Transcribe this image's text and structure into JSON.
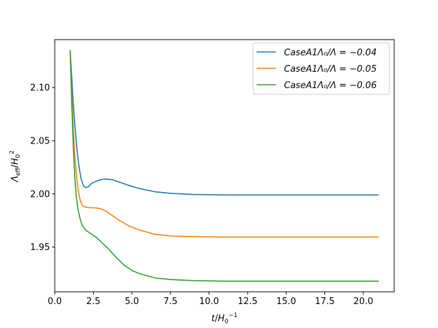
{
  "chart_data": {
    "type": "line",
    "xlabel": "t/H_0^{-1}",
    "ylabel": "Λ_eff/H_0^2",
    "xlim": [
      0.0,
      22.0
    ],
    "ylim": [
      1.908,
      2.145
    ],
    "xticks": [
      {
        "value": 0.0,
        "label": "0.0"
      },
      {
        "value": 2.5,
        "label": "2.5"
      },
      {
        "value": 5.0,
        "label": "5.0"
      },
      {
        "value": 7.5,
        "label": "7.5"
      },
      {
        "value": 10.0,
        "label": "10.0"
      },
      {
        "value": 12.5,
        "label": "12.5"
      },
      {
        "value": 15.0,
        "label": "15.0"
      },
      {
        "value": 17.5,
        "label": "17.5"
      },
      {
        "value": 20.0,
        "label": "20.0"
      }
    ],
    "yticks": [
      {
        "value": 1.95,
        "label": "1.95"
      },
      {
        "value": 2.0,
        "label": "2.00"
      },
      {
        "value": 2.05,
        "label": "2.05"
      },
      {
        "value": 2.1,
        "label": "2.10"
      }
    ],
    "grid": false,
    "legend_position": "top-right",
    "series": [
      {
        "name": "CaseA1Λ₀/Λ = −0.04",
        "color": "#1f77b4",
        "points": [
          [
            1.0,
            2.135
          ],
          [
            1.1,
            2.11
          ],
          [
            1.2,
            2.085
          ],
          [
            1.3,
            2.065
          ],
          [
            1.4,
            2.048
          ],
          [
            1.5,
            2.034
          ],
          [
            1.6,
            2.023
          ],
          [
            1.7,
            2.015
          ],
          [
            1.8,
            2.01
          ],
          [
            1.9,
            2.007
          ],
          [
            2.0,
            2.006
          ],
          [
            2.2,
            2.007
          ],
          [
            2.4,
            2.01
          ],
          [
            2.7,
            2.012
          ],
          [
            3.0,
            2.0135
          ],
          [
            3.3,
            2.014
          ],
          [
            3.7,
            2.0135
          ],
          [
            4.2,
            2.011
          ],
          [
            4.8,
            2.008
          ],
          [
            5.5,
            2.005
          ],
          [
            6.5,
            2.002
          ],
          [
            7.5,
            2.0005
          ],
          [
            9.0,
            1.9995
          ],
          [
            11.0,
            1.999
          ],
          [
            14.0,
            1.999
          ],
          [
            17.0,
            1.999
          ],
          [
            21.0,
            1.999
          ]
        ]
      },
      {
        "name": "CaseA1Λ₀/Λ = −0.05",
        "color": "#ff7f0e",
        "points": [
          [
            1.0,
            2.135
          ],
          [
            1.1,
            2.095
          ],
          [
            1.2,
            2.062
          ],
          [
            1.3,
            2.036
          ],
          [
            1.4,
            2.018
          ],
          [
            1.5,
            2.005
          ],
          [
            1.6,
            1.997
          ],
          [
            1.7,
            1.992
          ],
          [
            1.8,
            1.989
          ],
          [
            2.0,
            1.9875
          ],
          [
            2.3,
            1.987
          ],
          [
            2.7,
            1.9868
          ],
          [
            3.0,
            1.986
          ],
          [
            3.3,
            1.984
          ],
          [
            3.7,
            1.98
          ],
          [
            4.2,
            1.975
          ],
          [
            4.8,
            1.97
          ],
          [
            5.5,
            1.966
          ],
          [
            6.5,
            1.962
          ],
          [
            7.5,
            1.9605
          ],
          [
            9.0,
            1.9598
          ],
          [
            11.0,
            1.9595
          ],
          [
            14.0,
            1.9595
          ],
          [
            17.0,
            1.9595
          ],
          [
            21.0,
            1.9595
          ]
        ]
      },
      {
        "name": "CaseA1Λ₀/Λ = −0.06",
        "color": "#2ca02c",
        "points": [
          [
            1.0,
            2.135
          ],
          [
            1.1,
            2.085
          ],
          [
            1.2,
            2.045
          ],
          [
            1.3,
            2.015
          ],
          [
            1.4,
            1.997
          ],
          [
            1.5,
            1.986
          ],
          [
            1.6,
            1.979
          ],
          [
            1.7,
            1.974
          ],
          [
            1.8,
            1.97
          ],
          [
            2.0,
            1.966
          ],
          [
            2.3,
            1.963
          ],
          [
            2.7,
            1.959
          ],
          [
            3.0,
            1.955
          ],
          [
            3.5,
            1.948
          ],
          [
            4.0,
            1.94
          ],
          [
            4.5,
            1.933
          ],
          [
            5.0,
            1.928
          ],
          [
            5.5,
            1.925
          ],
          [
            6.5,
            1.921
          ],
          [
            7.5,
            1.9195
          ],
          [
            9.0,
            1.9185
          ],
          [
            11.0,
            1.918
          ],
          [
            14.0,
            1.918
          ],
          [
            17.0,
            1.918
          ],
          [
            21.0,
            1.918
          ]
        ]
      }
    ]
  }
}
